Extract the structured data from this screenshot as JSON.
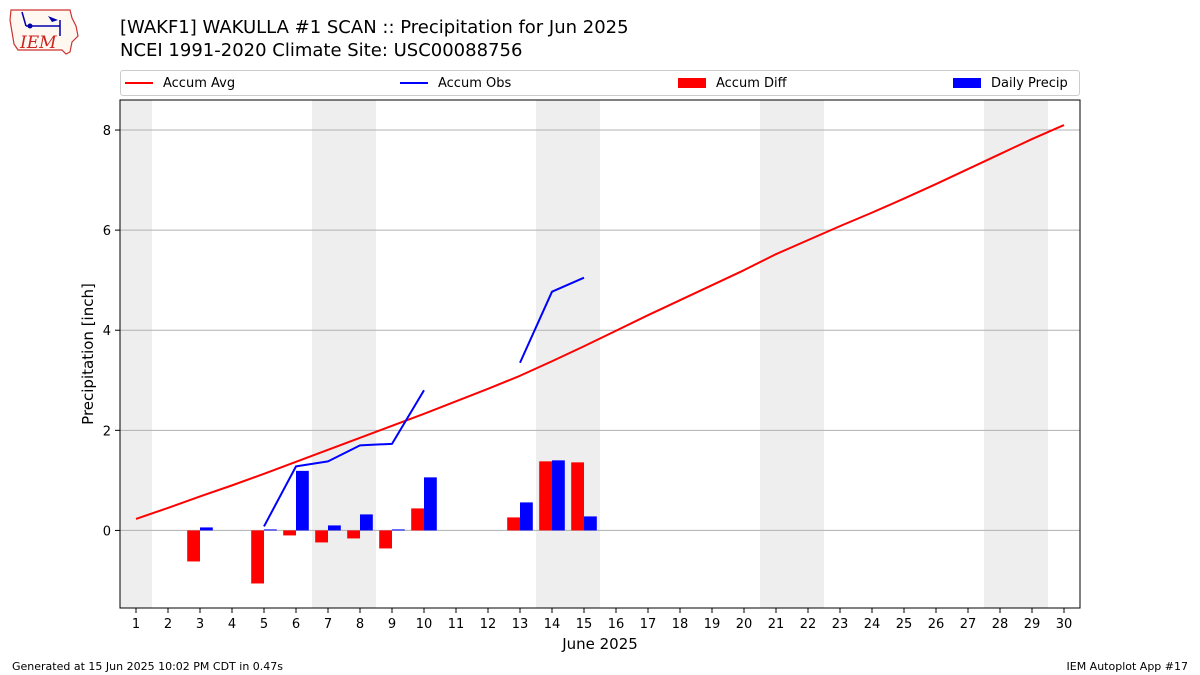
{
  "header": {
    "title_line1": "[WAKF1] WAKULLA #1 SCAN :: Precipitation for Jun 2025",
    "title_line2": "NCEI 1991-2020 Climate Site: USC00088756"
  },
  "logo": {
    "text": "IEM"
  },
  "footer": {
    "left": "Generated at 15 Jun 2025 10:02 PM CDT in 0.47s",
    "right": "IEM Autoplot App #17"
  },
  "colors": {
    "avg": "#ff0000",
    "obs": "#0000ff",
    "diff": "#ff0000",
    "daily": "#0000ff",
    "weekend": "#eeeeee"
  },
  "chart_data": {
    "type": "bar",
    "xlabel": "June 2025",
    "ylabel": "Precipitation [inch]",
    "xlim": [
      0.5,
      30.5
    ],
    "ylim": [
      -1.55,
      8.6
    ],
    "x_ticks": [
      1,
      2,
      3,
      4,
      5,
      6,
      7,
      8,
      9,
      10,
      11,
      12,
      13,
      14,
      15,
      16,
      17,
      18,
      19,
      20,
      21,
      22,
      23,
      24,
      25,
      26,
      27,
      28,
      29,
      30
    ],
    "y_ticks": [
      0,
      2,
      4,
      6,
      8
    ],
    "grid": "horizontal",
    "legend_position": "top",
    "weekend_days": [
      1,
      7,
      8,
      14,
      15,
      21,
      22,
      28,
      29
    ],
    "series": [
      {
        "name": "Accum Avg",
        "kind": "line",
        "x": [
          1,
          2,
          3,
          4,
          5,
          6,
          7,
          8,
          9,
          10,
          11,
          12,
          13,
          14,
          15,
          16,
          17,
          18,
          19,
          20,
          21,
          22,
          23,
          24,
          25,
          26,
          27,
          28,
          29,
          30
        ],
        "values": [
          0.23,
          0.45,
          0.68,
          0.9,
          1.13,
          1.37,
          1.61,
          1.85,
          2.09,
          2.33,
          2.58,
          2.83,
          3.09,
          3.38,
          3.68,
          3.99,
          4.3,
          4.6,
          4.9,
          5.2,
          5.52,
          5.8,
          6.08,
          6.35,
          6.63,
          6.92,
          7.22,
          7.52,
          7.82,
          8.1
        ]
      },
      {
        "name": "Accum Obs",
        "kind": "line",
        "x": [
          5,
          6,
          7,
          8,
          9,
          10,
          11,
          12,
          13,
          14,
          15
        ],
        "values": [
          0.08,
          1.28,
          1.38,
          1.7,
          1.73,
          2.8,
          null,
          null,
          3.35,
          4.77,
          5.05
        ]
      },
      {
        "name": "Accum Diff",
        "kind": "bar",
        "x": [
          3,
          5,
          6,
          7,
          8,
          9,
          10,
          13,
          14,
          15
        ],
        "values": [
          -0.62,
          -1.06,
          -0.1,
          -0.24,
          -0.16,
          -0.36,
          0.44,
          0.26,
          1.38,
          1.36
        ]
      },
      {
        "name": "Daily Precip",
        "kind": "bar",
        "x": [
          3,
          5,
          6,
          7,
          8,
          9,
          10,
          13,
          14,
          15
        ],
        "values": [
          0.06,
          0.02,
          1.19,
          0.1,
          0.32,
          0.02,
          1.06,
          0.56,
          1.4,
          0.28
        ]
      }
    ]
  }
}
